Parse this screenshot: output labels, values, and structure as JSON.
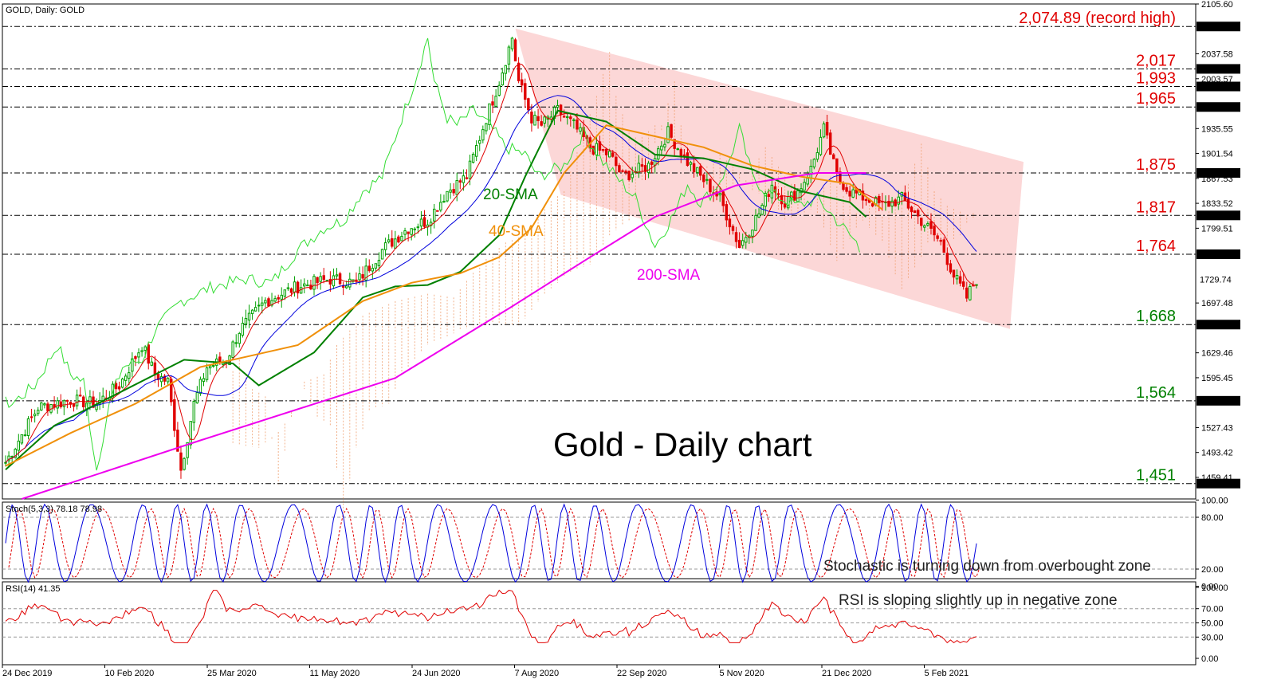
{
  "header": {
    "main": "GOLD, Daily:  GOLD",
    "stoch": "Stoch(5,3,3) 78.18 78.98",
    "rsi": "RSI(14) 41.35"
  },
  "title": "Gold - Daily chart",
  "annotations": {
    "stoch": "Stochastic is turning down from overbought zone",
    "rsi": "RSI is sloping slightly up in negative zone"
  },
  "colors": {
    "bull": "#00a000",
    "bear": "#e00000",
    "sma20": "#008000",
    "sma40": "#f0900a",
    "sma200": "#ee00ee",
    "kijun": "#0000dd",
    "tenkan": "#e00000",
    "chikou": "#33dd33",
    "cloud": "#f0a070",
    "channel": "#fbd0d0",
    "res": "#e00000",
    "sup": "#008000",
    "stoch_k": "#0000dd",
    "stoch_d": "#e00000",
    "rsi": "#e00000"
  },
  "chart_data": [
    {
      "type": "line",
      "panel": "price",
      "ylim": [
        1430,
        2105.6
      ],
      "x_dates": [
        "24 Dec 2019",
        "10 Feb 2020",
        "25 Mar 2020",
        "11 May 2020",
        "24 Jun 2020",
        "7 Aug 2020",
        "22 Sep 2020",
        "5 Nov 2020",
        "21 Dec 2020",
        "5 Feb 2021"
      ],
      "y_ticks": [
        "2105.60",
        "2037.58",
        "2003.57",
        "1935.55",
        "1901.54",
        "1867.53",
        "1833.52",
        "1799.51",
        "1697.48",
        "1629.46",
        "1595.45",
        "1527.43",
        "1493.42",
        "1459.41"
      ],
      "levels": [
        {
          "value": 2074.89,
          "text": "2,074.89 (record high)",
          "tag": "2074.89",
          "kind": "res"
        },
        {
          "value": 2017,
          "text": "2,017",
          "tag": "2017.00",
          "kind": "res"
        },
        {
          "value": 1993,
          "text": "1,993",
          "tag": "1993.00",
          "kind": "res"
        },
        {
          "value": 1965,
          "text": "1,965",
          "tag": "1965.00",
          "kind": "res"
        },
        {
          "value": 1875,
          "text": "1,875",
          "tag": "1875.00",
          "kind": "res"
        },
        {
          "value": 1817,
          "text": "1,817",
          "tag": "1817.00",
          "kind": "res"
        },
        {
          "value": 1764,
          "text": "1,764",
          "tag": "1764.00",
          "kind": "res"
        },
        {
          "value": 1668,
          "text": "1,668",
          "tag": "1668.00",
          "kind": "sup"
        },
        {
          "value": 1564,
          "text": "1,564",
          "tag": "1564.00",
          "kind": "sup"
        },
        {
          "value": 1451,
          "text": "1,451",
          "tag": "1451.00",
          "kind": "sup"
        }
      ],
      "last_price": {
        "value": 1729.74,
        "tag": "1729.74"
      },
      "sma_labels": [
        {
          "text": "20-SMA",
          "kind": "sma20"
        },
        {
          "text": "40-SMA",
          "kind": "sma40"
        },
        {
          "text": "200-SMA",
          "kind": "sma200"
        }
      ],
      "series": [
        {
          "name": "20-SMA",
          "x": [
            0,
            15,
            35,
            55,
            70,
            78,
            95,
            110,
            120,
            130,
            140,
            152,
            160,
            170,
            185,
            200,
            215,
            230,
            245,
            260,
            265
          ],
          "values": [
            1470,
            1530,
            1575,
            1620,
            1615,
            1585,
            1630,
            1705,
            1720,
            1722,
            1740,
            1790,
            1870,
            1960,
            1945,
            1900,
            1895,
            1880,
            1850,
            1835,
            1815
          ]
        },
        {
          "name": "40-SMA",
          "x": [
            0,
            20,
            40,
            60,
            75,
            90,
            110,
            125,
            140,
            152,
            162,
            172,
            185,
            200,
            215,
            230,
            245,
            260,
            270
          ],
          "values": [
            1475,
            1520,
            1560,
            1610,
            1625,
            1640,
            1700,
            1725,
            1738,
            1760,
            1800,
            1875,
            1940,
            1925,
            1910,
            1885,
            1870,
            1860,
            1825
          ]
        },
        {
          "name": "200-SMA",
          "x": [
            5,
            60,
            120,
            155,
            180,
            200,
            225,
            250,
            265
          ],
          "values": [
            1430,
            1510,
            1595,
            1690,
            1760,
            1815,
            1858,
            1875,
            1875
          ]
        }
      ]
    },
    {
      "type": "line",
      "panel": "stochastic",
      "name": "Stoch(5,3,3)",
      "ylim": [
        0,
        100
      ],
      "y_ticks": [
        "100.00",
        "80.00",
        "20.00",
        "0.00"
      ],
      "last": [
        78.18,
        78.98
      ]
    },
    {
      "type": "line",
      "panel": "rsi",
      "name": "RSI(14)",
      "ylim": [
        0,
        100
      ],
      "y_ticks": [
        "100.00",
        "70.00",
        "50.00",
        "30.00",
        "0.00"
      ],
      "last": 41.35
    }
  ]
}
